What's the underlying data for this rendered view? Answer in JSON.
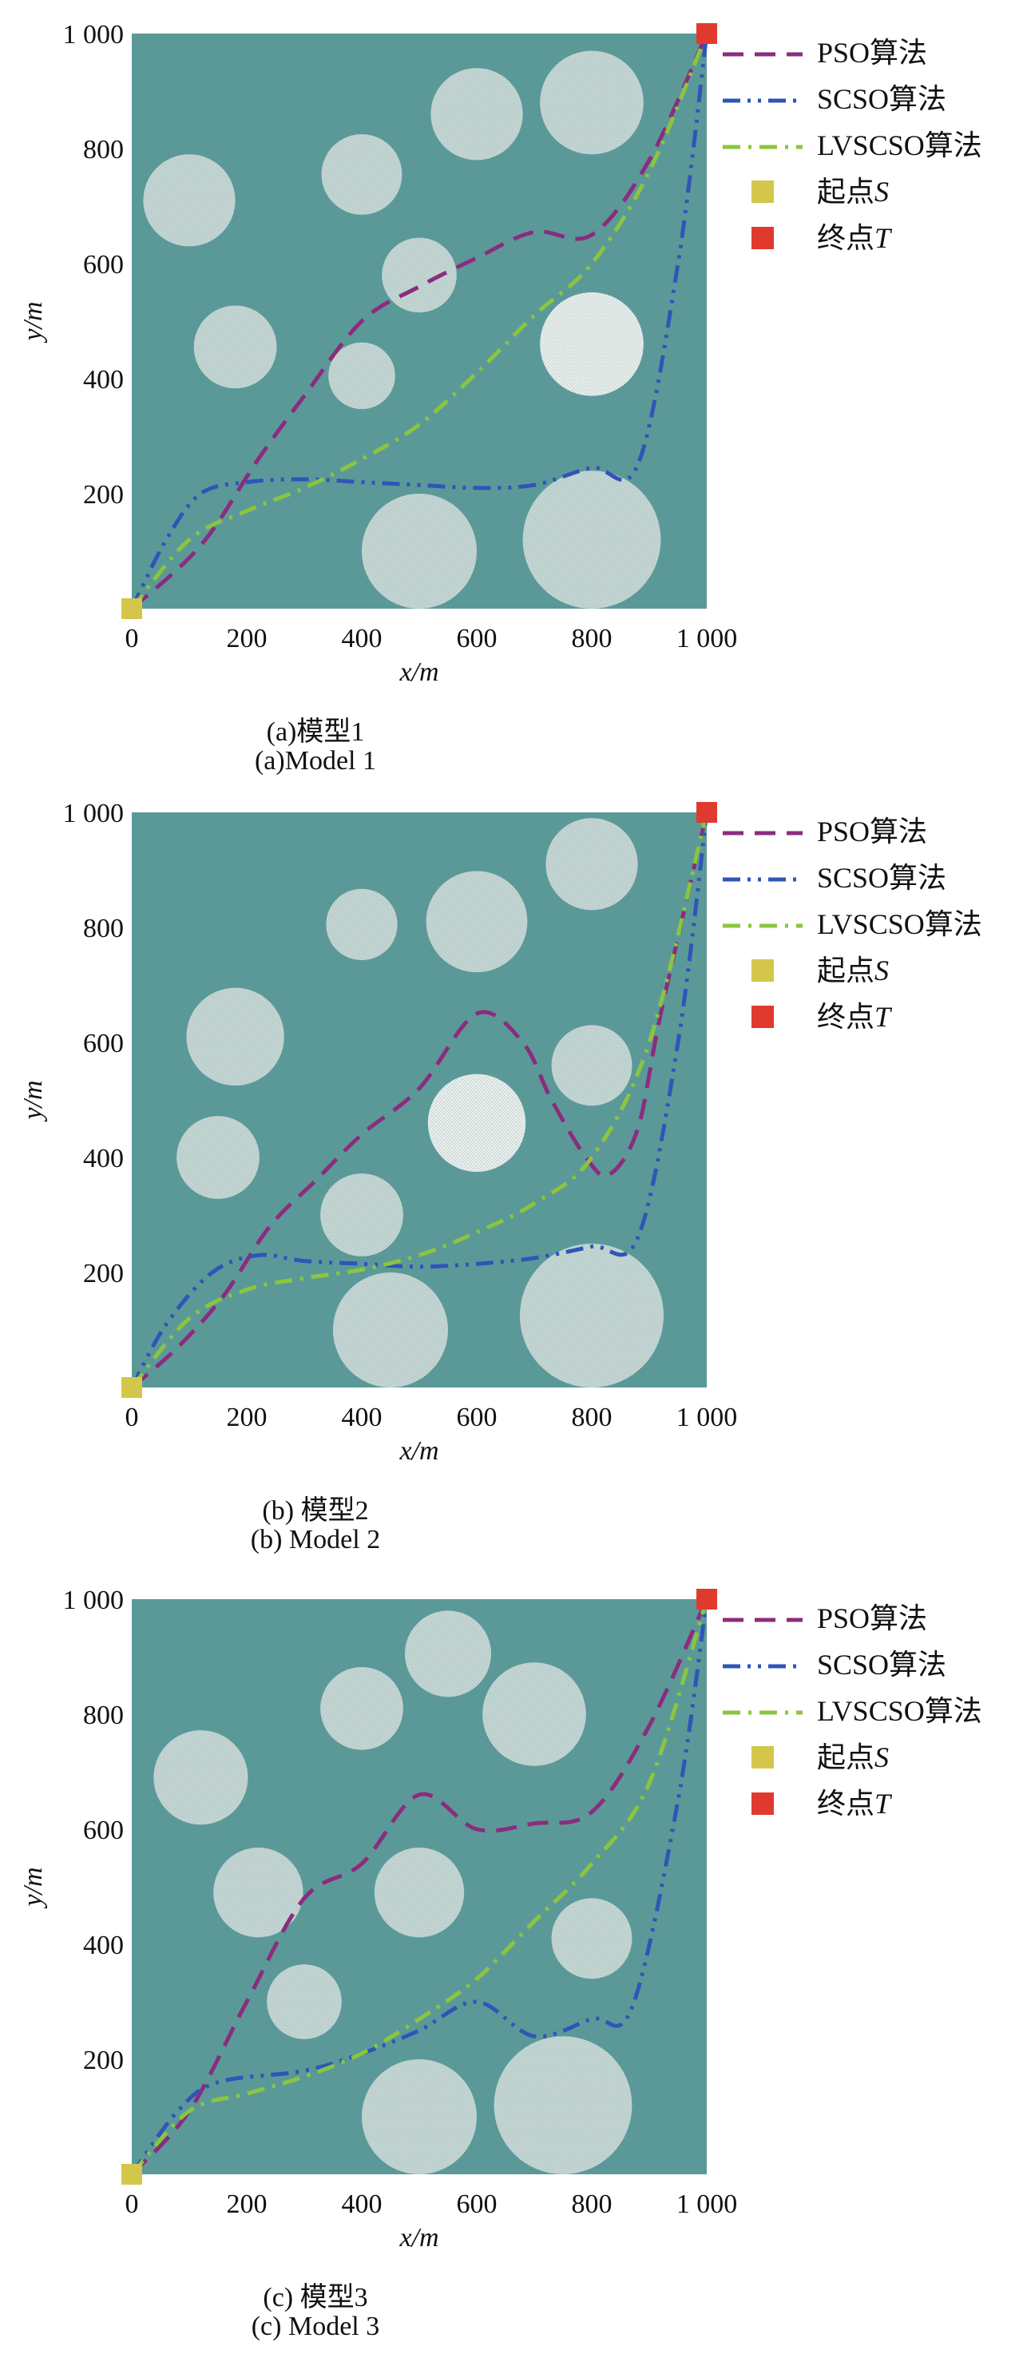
{
  "charts": {
    "chart_data": [
      {
        "type": "line",
        "xlabel": "x/m",
        "ylabel": "y/m",
        "xlim": [
          0,
          1000
        ],
        "ylim": [
          0,
          1000
        ],
        "x_ticks": [
          "0",
          "200",
          "400",
          "600",
          "800",
          "1 000"
        ],
        "y_ticks": [
          "200",
          "400",
          "600",
          "800",
          "1 000"
        ],
        "caption_cn": "(a)模型1",
        "caption_en": "(a)Model 1",
        "legend_position": "right",
        "start": [
          0,
          0
        ],
        "end": [
          1000,
          1000
        ],
        "obstacles": [
          {
            "x": 100,
            "y": 710,
            "r": 80
          },
          {
            "x": 400,
            "y": 755,
            "r": 70
          },
          {
            "x": 600,
            "y": 860,
            "r": 80
          },
          {
            "x": 800,
            "y": 880,
            "r": 90
          },
          {
            "x": 500,
            "y": 580,
            "r": 65
          },
          {
            "x": 180,
            "y": 455,
            "r": 72
          },
          {
            "x": 400,
            "y": 405,
            "r": 58
          },
          {
            "x": 800,
            "y": 460,
            "r": 90,
            "bright": true
          },
          {
            "x": 500,
            "y": 100,
            "r": 100
          },
          {
            "x": 800,
            "y": 120,
            "r": 120
          }
        ],
        "series": [
          {
            "name": "PSO算法",
            "color": "#8B2C7E",
            "dash": "26,14",
            "points": [
              [
                0,
                0
              ],
              [
                120,
                110
              ],
              [
                220,
                260
              ],
              [
                300,
                370
              ],
              [
                400,
                500
              ],
              [
                500,
                560
              ],
              [
                600,
                610
              ],
              [
                700,
                655
              ],
              [
                800,
                650
              ],
              [
                900,
                780
              ],
              [
                1000,
                1000
              ]
            ]
          },
          {
            "name": "SCSO算法",
            "color": "#2F55B8",
            "dash": "22,9,4,9,4,9",
            "points": [
              [
                0,
                0
              ],
              [
                60,
                120
              ],
              [
                120,
                200
              ],
              [
                200,
                220
              ],
              [
                300,
                225
              ],
              [
                400,
                220
              ],
              [
                500,
                215
              ],
              [
                600,
                210
              ],
              [
                700,
                215
              ],
              [
                800,
                245
              ],
              [
                880,
                250
              ],
              [
                950,
                600
              ],
              [
                1000,
                1000
              ]
            ]
          },
          {
            "name": "LVSCSO算法",
            "color": "#8BC53F",
            "dash": "22,10,4,10",
            "points": [
              [
                0,
                0
              ],
              [
                100,
                120
              ],
              [
                200,
                170
              ],
              [
                300,
                210
              ],
              [
                400,
                260
              ],
              [
                500,
                320
              ],
              [
                600,
                410
              ],
              [
                700,
                510
              ],
              [
                800,
                600
              ],
              [
                900,
                760
              ],
              [
                1000,
                1000
              ]
            ]
          }
        ]
      },
      {
        "type": "line",
        "xlabel": "x/m",
        "ylabel": "y/m",
        "xlim": [
          0,
          1000
        ],
        "ylim": [
          0,
          1000
        ],
        "x_ticks": [
          "0",
          "200",
          "400",
          "600",
          "800",
          "1 000"
        ],
        "y_ticks": [
          "200",
          "400",
          "600",
          "800",
          "1 000"
        ],
        "caption_cn": "(b) 模型2",
        "caption_en": "(b) Model 2",
        "legend_position": "right",
        "start": [
          0,
          0
        ],
        "end": [
          1000,
          1000
        ],
        "obstacles": [
          {
            "x": 800,
            "y": 910,
            "r": 80
          },
          {
            "x": 400,
            "y": 805,
            "r": 62
          },
          {
            "x": 600,
            "y": 810,
            "r": 88
          },
          {
            "x": 180,
            "y": 610,
            "r": 85
          },
          {
            "x": 800,
            "y": 560,
            "r": 70
          },
          {
            "x": 600,
            "y": 460,
            "r": 85,
            "bright": true
          },
          {
            "x": 150,
            "y": 400,
            "r": 72
          },
          {
            "x": 400,
            "y": 300,
            "r": 72
          },
          {
            "x": 450,
            "y": 100,
            "r": 100
          },
          {
            "x": 800,
            "y": 125,
            "r": 125
          }
        ],
        "series": [
          {
            "name": "PSO算法",
            "color": "#8B2C7E",
            "dash": "26,14",
            "points": [
              [
                0,
                0
              ],
              [
                80,
                70
              ],
              [
                160,
                160
              ],
              [
                240,
                280
              ],
              [
                320,
                360
              ],
              [
                400,
                440
              ],
              [
                500,
                520
              ],
              [
                600,
                650
              ],
              [
                680,
                600
              ],
              [
                730,
                500
              ],
              [
                790,
                400
              ],
              [
                830,
                370
              ],
              [
                880,
                450
              ],
              [
                920,
                650
              ],
              [
                1000,
                1000
              ]
            ]
          },
          {
            "name": "SCSO算法",
            "color": "#2F55B8",
            "dash": "22,9,4,9,4,9",
            "points": [
              [
                0,
                0
              ],
              [
                60,
                110
              ],
              [
                140,
                200
              ],
              [
                220,
                230
              ],
              [
                300,
                220
              ],
              [
                400,
                215
              ],
              [
                500,
                210
              ],
              [
                600,
                215
              ],
              [
                700,
                225
              ],
              [
                800,
                245
              ],
              [
                880,
                260
              ],
              [
                950,
                600
              ],
              [
                1000,
                1000
              ]
            ]
          },
          {
            "name": "LVSCSO算法",
            "color": "#8BC53F",
            "dash": "22,10,4,10",
            "points": [
              [
                0,
                0
              ],
              [
                100,
                120
              ],
              [
                200,
                170
              ],
              [
                300,
                190
              ],
              [
                400,
                205
              ],
              [
                500,
                230
              ],
              [
                600,
                270
              ],
              [
                700,
                320
              ],
              [
                800,
                400
              ],
              [
                900,
                600
              ],
              [
                1000,
                1000
              ]
            ]
          }
        ]
      },
      {
        "type": "line",
        "xlabel": "x/m",
        "ylabel": "y/m",
        "xlim": [
          0,
          1000
        ],
        "ylim": [
          0,
          1000
        ],
        "x_ticks": [
          "0",
          "200",
          "400",
          "600",
          "800",
          "1 000"
        ],
        "y_ticks": [
          "200",
          "400",
          "600",
          "800",
          "1 000"
        ],
        "caption_cn": "(c) 模型3",
        "caption_en": "(c) Model 3",
        "legend_position": "right",
        "start": [
          0,
          0
        ],
        "end": [
          1000,
          1000
        ],
        "obstacles": [
          {
            "x": 550,
            "y": 905,
            "r": 75
          },
          {
            "x": 400,
            "y": 810,
            "r": 72
          },
          {
            "x": 700,
            "y": 800,
            "r": 90
          },
          {
            "x": 120,
            "y": 690,
            "r": 82
          },
          {
            "x": 220,
            "y": 490,
            "r": 78
          },
          {
            "x": 500,
            "y": 490,
            "r": 78
          },
          {
            "x": 800,
            "y": 410,
            "r": 70
          },
          {
            "x": 300,
            "y": 300,
            "r": 65
          },
          {
            "x": 500,
            "y": 100,
            "r": 100
          },
          {
            "x": 750,
            "y": 120,
            "r": 120
          }
        ],
        "series": [
          {
            "name": "PSO算法",
            "color": "#8B2C7E",
            "dash": "26,14",
            "points": [
              [
                0,
                0
              ],
              [
                100,
                110
              ],
              [
                200,
                300
              ],
              [
                300,
                480
              ],
              [
                400,
                540
              ],
              [
                500,
                660
              ],
              [
                600,
                600
              ],
              [
                700,
                610
              ],
              [
                800,
                630
              ],
              [
                900,
                780
              ],
              [
                1000,
                1000
              ]
            ]
          },
          {
            "name": "SCSO算法",
            "color": "#2F55B8",
            "dash": "22,9,4,9,4,9",
            "points": [
              [
                0,
                0
              ],
              [
                80,
                110
              ],
              [
                150,
                160
              ],
              [
                300,
                180
              ],
              [
                400,
                210
              ],
              [
                500,
                250
              ],
              [
                600,
                300
              ],
              [
                700,
                240
              ],
              [
                800,
                270
              ],
              [
                870,
                290
              ],
              [
                950,
                650
              ],
              [
                1000,
                1000
              ]
            ]
          },
          {
            "name": "LVSCSO算法",
            "color": "#8BC53F",
            "dash": "22,10,4,10",
            "points": [
              [
                0,
                0
              ],
              [
                100,
                110
              ],
              [
                200,
                140
              ],
              [
                300,
                170
              ],
              [
                400,
                210
              ],
              [
                500,
                270
              ],
              [
                600,
                340
              ],
              [
                700,
                440
              ],
              [
                800,
                540
              ],
              [
                900,
                680
              ],
              [
                1000,
                1000
              ]
            ]
          }
        ]
      }
    ],
    "legend_marker_colors": {
      "start": "#D4C64A",
      "end": "#E03A2E"
    },
    "legend_labels": {
      "start_prefix": "起点",
      "start_var": "S",
      "end_prefix": "终点",
      "end_var": "T"
    },
    "plot_colors": {
      "background": "#5B9999",
      "obstacle": "#C7D8D6",
      "obstacle_bright": "#EEF2F1"
    }
  }
}
